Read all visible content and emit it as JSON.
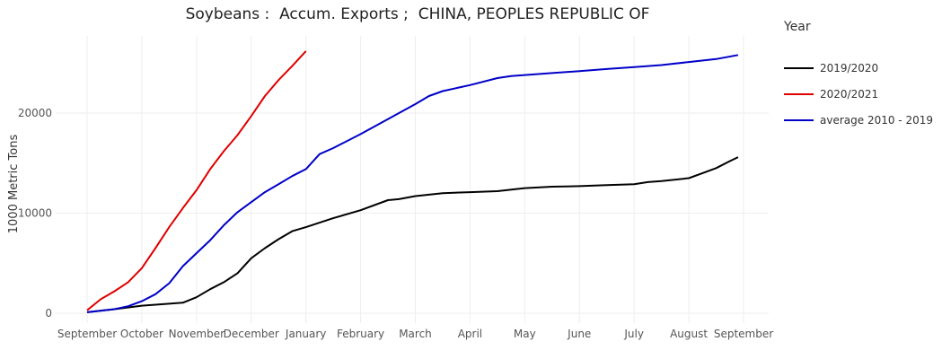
{
  "title": "Soybeans :  Accum. Exports ;  CHINA, PEOPLES REPUBLIC OF",
  "legend": {
    "title": "Year",
    "items": [
      {
        "label": "2019/2020",
        "color": "#000000"
      },
      {
        "label": "2020/2021",
        "color": "#e00000"
      },
      {
        "label": "average 2010 - 2019",
        "color": "#0000c8"
      }
    ]
  },
  "chart_data": {
    "type": "line",
    "title": "Soybeans :  Accum. Exports ;  CHINA, PEOPLES REPUBLIC OF",
    "xlabel": "",
    "ylabel": "1000 Metric Tons",
    "x_ticks": [
      "September",
      "October",
      "November",
      "December",
      "January",
      "February",
      "March",
      "April",
      "May",
      "June",
      "July",
      "August",
      "September"
    ],
    "y_ticks": [
      0,
      10000,
      20000
    ],
    "ylim": [
      0,
      27500
    ],
    "grid": true,
    "legend_position": "right",
    "x_unit": "month index (0 = September start, 12 = next September)",
    "series": [
      {
        "name": "2019/2020",
        "color": "#000000",
        "points": [
          [
            0,
            100
          ],
          [
            0.5,
            400
          ],
          [
            1,
            750
          ],
          [
            1.5,
            950
          ],
          [
            1.75,
            1050
          ],
          [
            2,
            1600
          ],
          [
            2.25,
            2400
          ],
          [
            2.5,
            3100
          ],
          [
            2.75,
            4000
          ],
          [
            3,
            5500
          ],
          [
            3.25,
            6500
          ],
          [
            3.5,
            7400
          ],
          [
            3.75,
            8200
          ],
          [
            4,
            8600
          ],
          [
            4.5,
            9500
          ],
          [
            5,
            10300
          ],
          [
            5.5,
            11300
          ],
          [
            5.7,
            11400
          ],
          [
            6,
            11700
          ],
          [
            6.5,
            12000
          ],
          [
            7,
            12100
          ],
          [
            7.5,
            12200
          ],
          [
            8,
            12500
          ],
          [
            8.5,
            12650
          ],
          [
            9,
            12700
          ],
          [
            9.5,
            12800
          ],
          [
            10,
            12900
          ],
          [
            10.25,
            13100
          ],
          [
            10.5,
            13200
          ],
          [
            11,
            13500
          ],
          [
            11.25,
            14000
          ],
          [
            11.5,
            14500
          ],
          [
            11.75,
            15200
          ],
          [
            11.9,
            15600
          ]
        ]
      },
      {
        "name": "2020/2021",
        "color": "#e00000",
        "points": [
          [
            0,
            300
          ],
          [
            0.25,
            1400
          ],
          [
            0.5,
            2200
          ],
          [
            0.75,
            3100
          ],
          [
            1,
            4500
          ],
          [
            1.25,
            6500
          ],
          [
            1.5,
            8600
          ],
          [
            1.75,
            10500
          ],
          [
            2,
            12300
          ],
          [
            2.25,
            14400
          ],
          [
            2.5,
            16200
          ],
          [
            2.75,
            17800
          ],
          [
            3,
            19700
          ],
          [
            3.25,
            21700
          ],
          [
            3.5,
            23300
          ],
          [
            3.75,
            24700
          ],
          [
            3.9,
            25600
          ],
          [
            4,
            26200
          ]
        ]
      },
      {
        "name": "average 2010 - 2019",
        "color": "#0000c8",
        "points": [
          [
            0,
            100
          ],
          [
            0.5,
            400
          ],
          [
            0.75,
            700
          ],
          [
            1,
            1200
          ],
          [
            1.25,
            1900
          ],
          [
            1.5,
            3000
          ],
          [
            1.75,
            4700
          ],
          [
            2,
            6000
          ],
          [
            2.25,
            7300
          ],
          [
            2.5,
            8800
          ],
          [
            2.75,
            10100
          ],
          [
            3,
            11100
          ],
          [
            3.25,
            12100
          ],
          [
            3.5,
            12900
          ],
          [
            3.75,
            13700
          ],
          [
            4,
            14400
          ],
          [
            4.25,
            15900
          ],
          [
            4.5,
            16500
          ],
          [
            5,
            17900
          ],
          [
            5.5,
            19400
          ],
          [
            6,
            20900
          ],
          [
            6.25,
            21700
          ],
          [
            6.5,
            22200
          ],
          [
            7,
            22800
          ],
          [
            7.5,
            23500
          ],
          [
            7.75,
            23700
          ],
          [
            8,
            23800
          ],
          [
            8.5,
            24000
          ],
          [
            9,
            24200
          ],
          [
            9.5,
            24400
          ],
          [
            10,
            24600
          ],
          [
            10.5,
            24800
          ],
          [
            11,
            25100
          ],
          [
            11.5,
            25400
          ],
          [
            11.9,
            25800
          ]
        ]
      }
    ]
  }
}
